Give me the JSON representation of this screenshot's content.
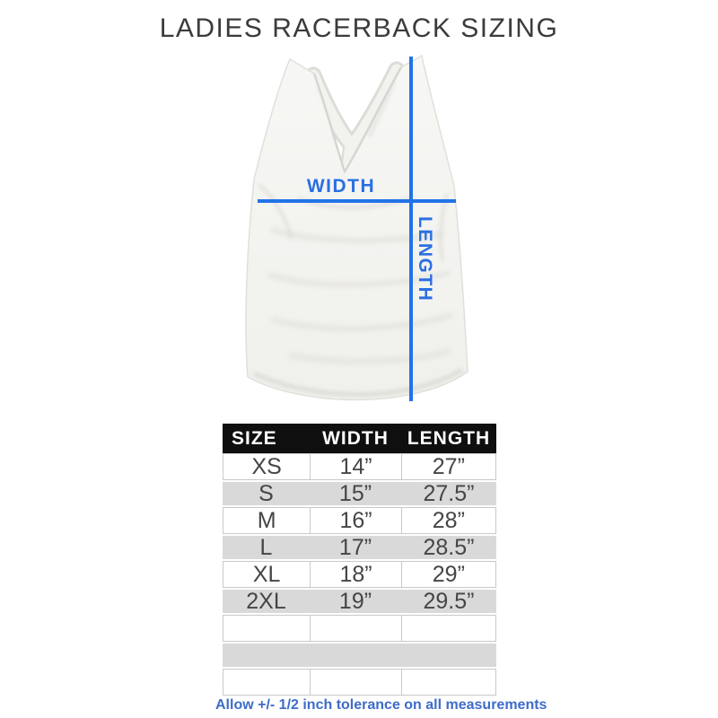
{
  "chart_data": {
    "type": "table",
    "title": "LADIES RACERBACK SIZING",
    "columns": [
      "SIZE",
      "WIDTH",
      "LENGTH"
    ],
    "rows": [
      [
        "XS",
        "14”",
        "27”"
      ],
      [
        "S",
        "15”",
        "27.5”"
      ],
      [
        "M",
        "16”",
        "28”"
      ],
      [
        "L",
        "17”",
        "28.5”"
      ],
      [
        "XL",
        "18”",
        "29”"
      ],
      [
        "2XL",
        "19”",
        "29.5”"
      ]
    ],
    "empty_trailing_rows": 3,
    "footnote": "Allow +/- 1/2 inch tolerance on all measurements"
  },
  "diagram": {
    "width_label": "WIDTH",
    "length_label": "LENGTH"
  },
  "colors": {
    "measure_blue": "#2273e8",
    "label_blue": "#2a6fe2",
    "note_blue": "#3e6cc8",
    "header_bg": "#0f0f0f",
    "stripe_gray": "#d9d9d9"
  }
}
